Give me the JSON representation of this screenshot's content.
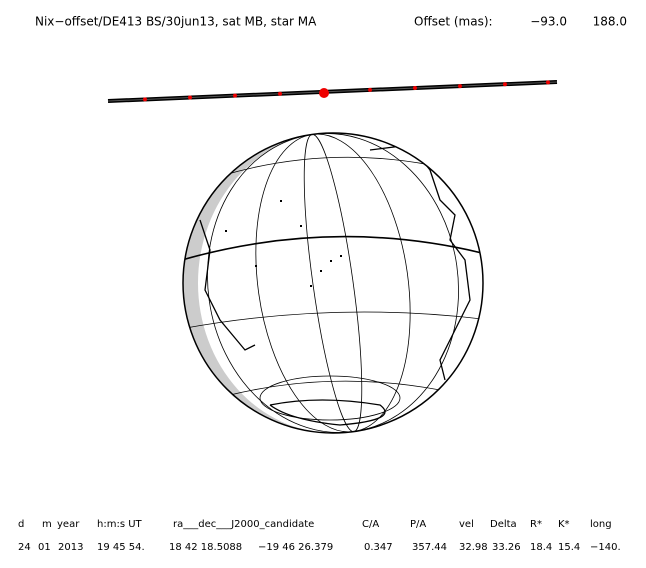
{
  "header": {
    "title": "Nix−offset/DE413 BS/30jun13, sat MB, star MA",
    "offset_label": "Offset (mas):",
    "offset_x": "−93.0",
    "offset_y": "188.0"
  },
  "table": {
    "header": [
      "d",
      "m",
      "year",
      "h:m:s UT",
      "ra___dec___J2000_candidate",
      "C/A",
      "P/A",
      "vel",
      "Delta",
      "R*",
      "K*",
      "long"
    ],
    "rows": [
      [
        "24",
        "01",
        "2013",
        "19 45 54.",
        "18 42 18.5088",
        "−19 46  26.379",
        "0.347",
        "357.44",
        "32.98",
        "33.26",
        "18.4",
        "15.4",
        "−140."
      ]
    ]
  }
}
